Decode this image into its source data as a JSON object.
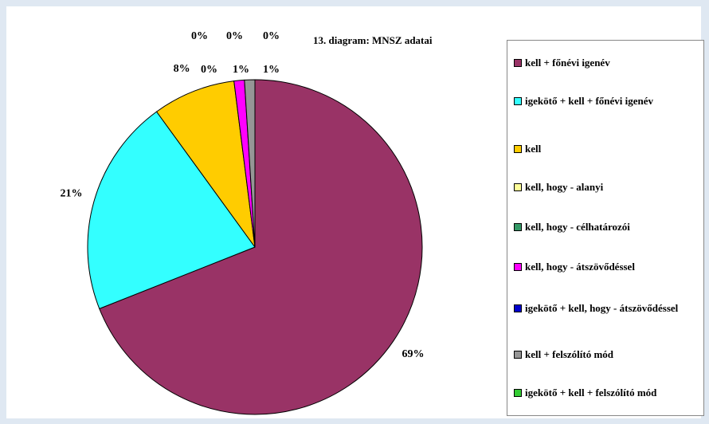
{
  "chart_data": {
    "type": "pie",
    "title": "13. diagram: MNSZ adatai",
    "categories": [
      "kell + főnévi igenév",
      "igekötő + kell + főnévi igenév",
      "kell",
      "kell, hogy - alanyi",
      "kell, hogy - célhatározói",
      "kell, hogy - átszövődéssel",
      "igekötő + kell, hogy - átszövődéssel",
      "kell + felszólító mód",
      "igekötő + kell + felszólító mód"
    ],
    "values": [
      69,
      21,
      8,
      0,
      0,
      1,
      0,
      1,
      0
    ],
    "value_labels": [
      "69%",
      "21%",
      "8%",
      "0%",
      "0%",
      "1%",
      "0%",
      "1%",
      "0%"
    ],
    "colors": [
      "#993366",
      "#33ffff",
      "#ffcc00",
      "#ffff99",
      "#339966",
      "#ff00ff",
      "#0000cc",
      "#969696",
      "#33cc33"
    ],
    "legend": "right"
  }
}
